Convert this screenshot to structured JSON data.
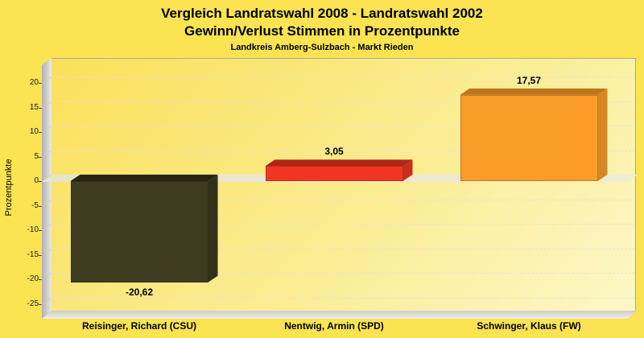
{
  "header": {
    "title_line1": "Vergleich Landratswahl 2008 - Landratswahl 2002",
    "title_line2": "Gewinn/Verlust Stimmen in Prozentpunkte",
    "subtitle": "Landkreis Amberg-Sulzbach - Markt Rieden"
  },
  "chart_data": {
    "type": "bar",
    "title": "Vergleich Landratswahl 2008 - Landratswahl 2002 / Gewinn/Verlust Stimmen in Prozentpunkte",
    "subtitle": "Landkreis Amberg-Sulzbach - Markt Rieden",
    "xlabel": "",
    "ylabel": "Prozentpunkte",
    "categories": [
      "Reisinger, Richard (CSU)",
      "Nentwig, Armin (SPD)",
      "Schwinger, Klaus (FW)"
    ],
    "values": [
      -20.62,
      3.05,
      17.57
    ],
    "value_labels": [
      "-20,62",
      "3,05",
      "17,57"
    ],
    "ylim": [
      -25,
      25
    ],
    "yticks": [
      20,
      15,
      10,
      5,
      0,
      -5,
      -10,
      -15,
      -20,
      -25
    ],
    "grid": "horizontal-dashed",
    "legend": "none",
    "style_3d": true,
    "bar_colors": [
      {
        "name": "CSU dark olive",
        "front": "#3E3B20",
        "top": "#272511",
        "side": "#34311A"
      },
      {
        "name": "SPD red",
        "front": "#F23522",
        "top": "#AE2616",
        "side": "#C92E1B"
      },
      {
        "name": "FW orange",
        "front": "#FB9B28",
        "top": "#BC751B",
        "side": "#D78620"
      }
    ]
  },
  "colors": {
    "background": "#FBE351",
    "plot_gradient_start": "#FAE05A",
    "plot_gradient_end": "#FCF7C8",
    "wall_gray": "#D5D5CF",
    "zero_plane": "#EAE8D0",
    "gridline": "#E2E2D8",
    "text": "#000000"
  }
}
